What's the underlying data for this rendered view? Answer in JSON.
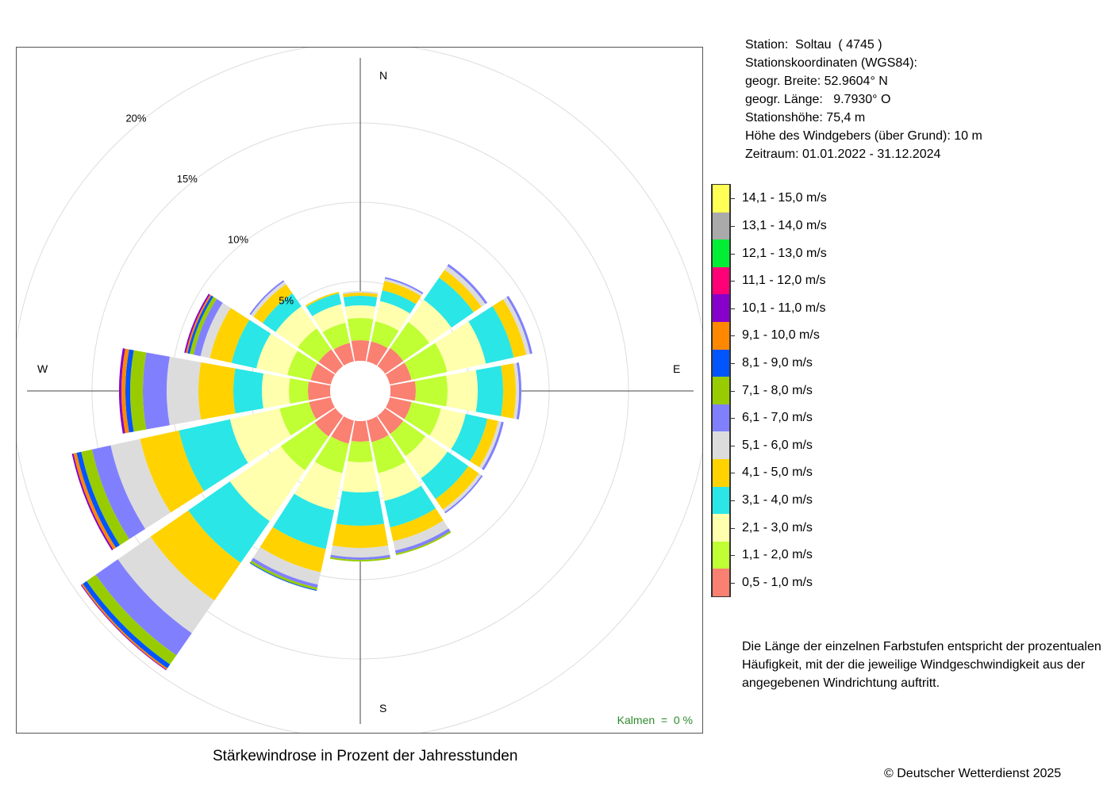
{
  "station": {
    "lines": [
      "Station:  Soltau  ( 4745 )",
      "Stationskoordinaten (WGS84):",
      "geogr. Breite: 52.9604° N",
      "geogr. Länge:   9.7930° O",
      "Stationshöhe: 75,4 m",
      "Höhe des Windgebers (über Grund): 10 m",
      "Zeitraum: 01.01.2022 - 31.12.2024"
    ]
  },
  "note": "Die Länge der einzelnen Farbstufen entspricht der prozentualen Häufigkeit, mit der die jeweilige Windgeschwindigkeit aus der angegebenen Windrichtung auftritt.",
  "caption": "Stärkewindrose in Prozent der Jahresstunden",
  "copyright": "© Deutscher Wetterdienst  2025",
  "calm": "Kalmen  =  0 %",
  "chart_data": {
    "type": "wind-rose",
    "directions": [
      "N",
      "NNE",
      "NE",
      "ENE",
      "E",
      "ESE",
      "SE",
      "SSE",
      "S",
      "SSW",
      "SW",
      "WSW",
      "W",
      "WNW",
      "NW",
      "NNW"
    ],
    "direction_labels": {
      "N": "N",
      "E": "E",
      "S": "S",
      "W": "W"
    },
    "ring_labels": [
      "5%",
      "10%",
      "15%",
      "20%"
    ],
    "ring_values": [
      5,
      10,
      15,
      20
    ],
    "r_max": 25,
    "hole_pct": 1,
    "categories": [
      {
        "label": "0,5 - 1,0 m/s",
        "color": "#fa8072"
      },
      {
        "label": "1,1 - 2,0 m/s",
        "color": "#bfff33"
      },
      {
        "label": "2,1 - 3,0 m/s",
        "color": "#ffffad"
      },
      {
        "label": "3,1 - 4,0 m/s",
        "color": "#2ae6e6"
      },
      {
        "label": "4,1 - 5,0 m/s",
        "color": "#ffd200"
      },
      {
        "label": "5,1 - 6,0 m/s",
        "color": "#dcdcdc"
      },
      {
        "label": "6,1 - 7,0 m/s",
        "color": "#8080ff"
      },
      {
        "label": "7,1 - 8,0 m/s",
        "color": "#99cc00"
      },
      {
        "label": "8,1 - 9,0 m/s",
        "color": "#0055ff"
      },
      {
        "label": "9,1 - 10,0 m/s",
        "color": "#ff8800"
      },
      {
        "label": "10,1 - 11,0 m/s",
        "color": "#8800cc"
      },
      {
        "label": "11,1 - 12,0 m/s",
        "color": "#ff0077"
      },
      {
        "label": "12,1 - 13,0 m/s",
        "color": "#00ee33"
      },
      {
        "label": "13,1 - 14,0 m/s",
        "color": "#aaaaaa"
      },
      {
        "label": "14,1 - 15,0 m/s",
        "color": "#ffff55"
      }
    ],
    "cumulative_pct": [
      [
        1.3,
        2.7,
        3.5,
        4.1,
        4.3,
        4.4
      ],
      [
        1.3,
        2.6,
        3.9,
        4.6,
        5.2,
        5.35,
        5.45
      ],
      [
        1.4,
        3.4,
        5.1,
        6.8,
        7.4,
        7.7,
        7.85
      ],
      [
        1.4,
        3.7,
        6.2,
        8.0,
        8.8,
        9.05,
        9.2
      ],
      [
        1.6,
        3.6,
        5.5,
        7.1,
        7.9,
        8.1,
        8.25
      ],
      [
        1.4,
        3.3,
        4.9,
        6.3,
        7.0,
        7.2,
        7.35
      ],
      [
        1.4,
        3.1,
        4.8,
        6.4,
        7.2,
        7.4,
        7.5
      ],
      [
        1.4,
        3.4,
        5.2,
        6.9,
        7.8,
        8.4,
        8.6,
        8.7
      ],
      [
        1.3,
        2.6,
        4.5,
        6.6,
        8.0,
        8.6,
        8.75,
        8.85
      ],
      [
        1.5,
        3.4,
        5.8,
        8.3,
        9.8,
        10.6,
        10.8,
        10.95,
        11.0
      ],
      [
        1.6,
        4.2,
        8.1,
        11.3,
        14.2,
        16.7,
        18.4,
        19.1,
        19.4,
        19.5,
        19.55
      ],
      [
        1.4,
        3.3,
        6.5,
        9.8,
        12.3,
        14.2,
        15.4,
        16.1,
        16.4,
        16.6,
        16.7
      ],
      [
        1.4,
        2.6,
        4.3,
        6.1,
        8.3,
        10.3,
        11.8,
        12.6,
        12.9,
        13.15,
        13.3
      ],
      [
        1.3,
        2.8,
        4.8,
        6.4,
        7.8,
        8.4,
        8.85,
        9.1,
        9.25,
        9.35,
        9.45
      ],
      [
        1.3,
        2.9,
        4.6,
        5.6,
        6.3,
        6.5,
        6.6
      ],
      [
        1.2,
        2.5,
        3.7,
        4.4,
        4.5
      ]
    ]
  }
}
